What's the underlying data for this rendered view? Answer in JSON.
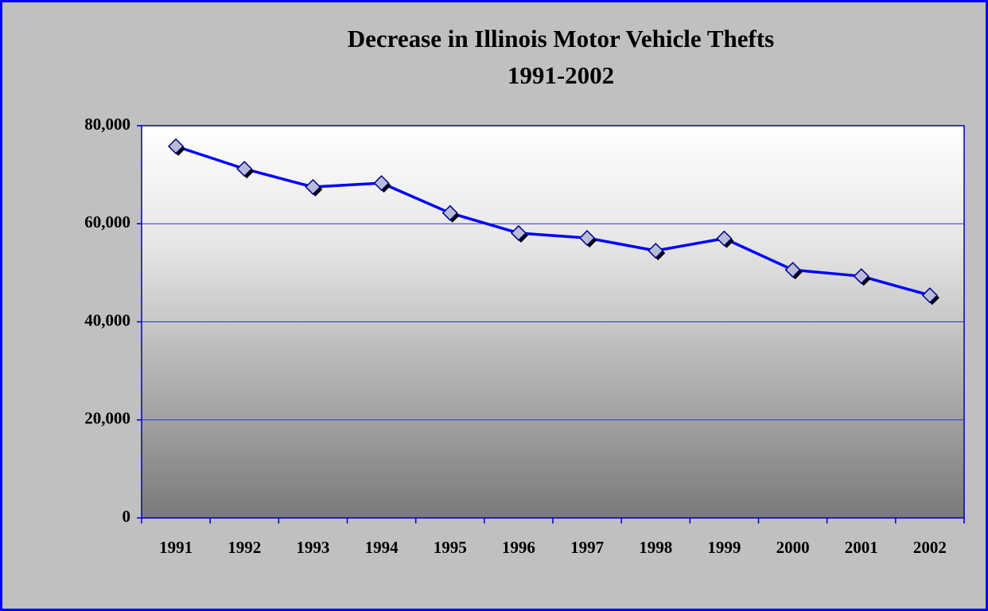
{
  "chart_data": {
    "type": "line",
    "title": "Decrease in Illinois Motor Vehicle Thefts",
    "subtitle": "1991-2002",
    "categories": [
      "1991",
      "1992",
      "1993",
      "1994",
      "1995",
      "1996",
      "1997",
      "1998",
      "1999",
      "2000",
      "2001",
      "2002"
    ],
    "series": [
      {
        "name": "Motor Vehicle Thefts",
        "color": "#0000ff",
        "marker_color": "#b8bcd8",
        "values": [
          75800,
          71200,
          67500,
          68300,
          62200,
          58100,
          57100,
          54500,
          57000,
          50600,
          49300,
          45400
        ]
      }
    ],
    "ylim": [
      0,
      80000
    ],
    "yticks": [
      0,
      {
        "value": 20000,
        "label": "20,000"
      },
      {
        "value": 40000,
        "label": "40,000"
      },
      {
        "value": 60000,
        "label": "60,000"
      },
      {
        "value": 80000,
        "label": "80,000"
      }
    ],
    "grid": true,
    "legend": false
  }
}
